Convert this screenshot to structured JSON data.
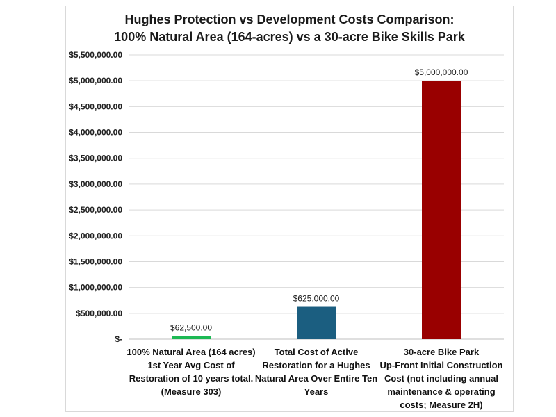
{
  "chart_data": {
    "type": "bar",
    "title_line1": "Hughes Protection vs Development Costs Comparison:",
    "title_line2": "100% Natural Area (164-acres) vs a 30-acre Bike Skills Park",
    "categories": [
      [
        "100% Natural Area (164 acres)",
        "1st Year Avg Cost of",
        "Restoration of 10 years total.",
        "(Measure 303)"
      ],
      [
        "Total Cost of Active",
        "Restoration for a Hughes",
        "Natural Area Over Entire Ten",
        "Years"
      ],
      [
        "30-acre Bike Park",
        "Up-Front Initial Construction",
        "Cost (not including annual",
        "maintenance & operating",
        "costs; Measure 2H)"
      ]
    ],
    "values": [
      62500,
      625000,
      5000000
    ],
    "value_labels": [
      "$62,500.00",
      "$625,000.00",
      "$5,000,000.00"
    ],
    "colors": [
      "#1db954",
      "#1b5e80",
      "#990000"
    ],
    "ylim": [
      0,
      5500000
    ],
    "yticks": [
      0,
      500000,
      1000000,
      1500000,
      2000000,
      2500000,
      3000000,
      3500000,
      4000000,
      4500000,
      5000000,
      5500000
    ],
    "ytick_labels": [
      "$-",
      "$500,000.00",
      "$1,000,000.00",
      "$1,500,000.00",
      "$2,000,000.00",
      "$2,500,000.00",
      "$3,000,000.00",
      "$3,500,000.00",
      "$4,000,000.00",
      "$4,500,000.00",
      "$5,000,000.00",
      "$5,500,000.00"
    ],
    "grid": true,
    "xlabel": "",
    "ylabel": ""
  }
}
